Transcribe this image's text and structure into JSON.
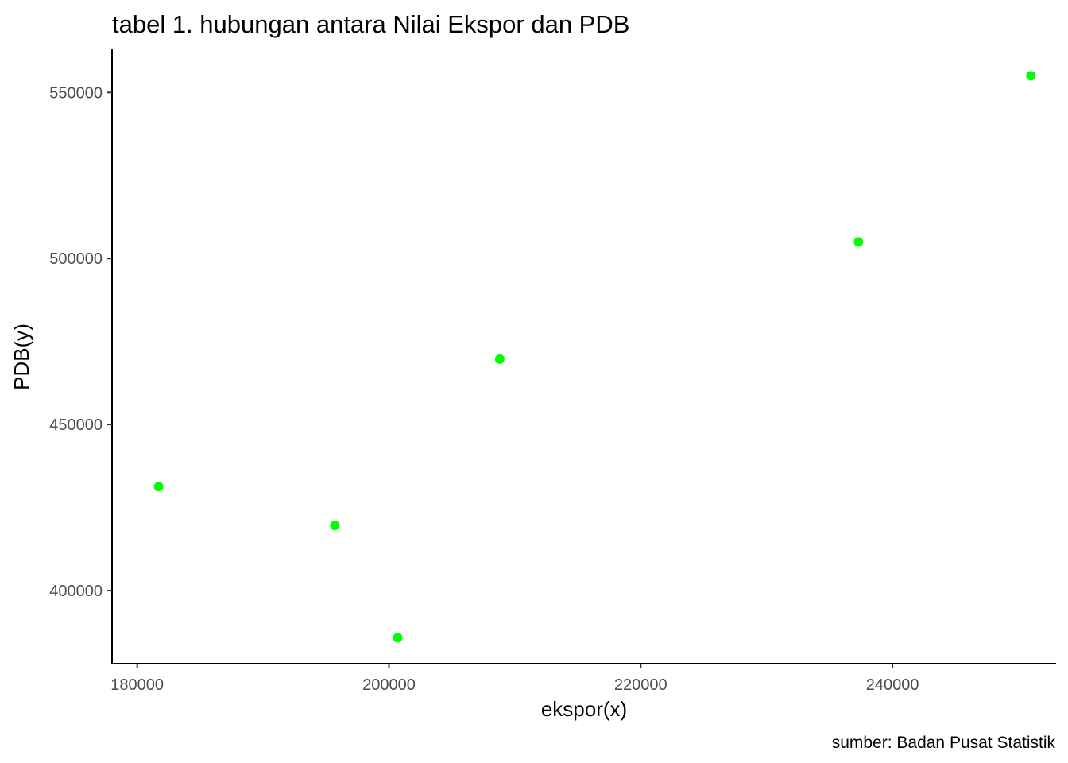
{
  "chart_data": {
    "type": "scatter",
    "title": "tabel 1. hubungan antara Nilai Ekspor dan PDB",
    "xlabel": "ekspor(x)",
    "ylabel": "PDB(y)",
    "caption": "sumber: Badan Pusat Statistik",
    "xlim": [
      178000,
      253000
    ],
    "ylim": [
      378000,
      563000
    ],
    "x_ticks": [
      180000,
      200000,
      220000,
      240000
    ],
    "y_ticks": [
      400000,
      450000,
      500000,
      550000
    ],
    "x_tick_labels": [
      "180000",
      "200000",
      "220000",
      "240000"
    ],
    "y_tick_labels": [
      "400000",
      "450000",
      "500000",
      "550000"
    ],
    "grid": false,
    "legend": "none",
    "point_color": "#00ff00",
    "points": [
      {
        "x": 181700,
        "y": 431300
      },
      {
        "x": 195700,
        "y": 419600
      },
      {
        "x": 200700,
        "y": 385800
      },
      {
        "x": 208800,
        "y": 469700
      },
      {
        "x": 237300,
        "y": 505000
      },
      {
        "x": 251000,
        "y": 555000
      }
    ]
  }
}
